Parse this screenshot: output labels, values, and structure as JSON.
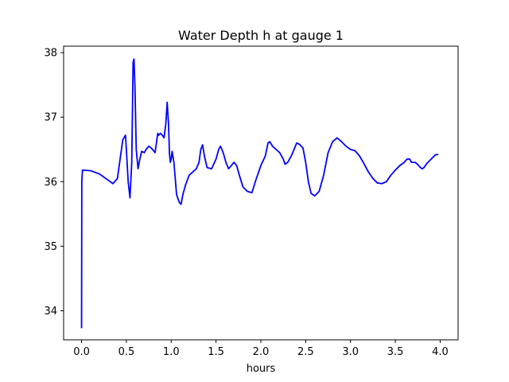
{
  "chart_data": {
    "type": "line",
    "title": "Water Depth h at gauge 1",
    "xlabel": "hours",
    "ylabel": "",
    "xlim": [
      -0.2,
      4.2
    ],
    "ylim": [
      33.55,
      38.1
    ],
    "xticks": [
      0.0,
      0.5,
      1.0,
      1.5,
      2.0,
      2.5,
      3.0,
      3.5,
      4.0
    ],
    "xtick_labels": [
      "0.0",
      "0.5",
      "1.0",
      "1.5",
      "2.0",
      "2.5",
      "3.0",
      "3.5",
      "4.0"
    ],
    "yticks": [
      34,
      35,
      36,
      37,
      38
    ],
    "ytick_labels": [
      "34",
      "35",
      "36",
      "37",
      "38"
    ],
    "grid": false,
    "legend": "none",
    "color": "#0000ff",
    "series": [
      {
        "x": [
          0.0,
          0.003,
          0.01,
          0.1,
          0.2,
          0.3,
          0.35,
          0.4,
          0.43,
          0.46,
          0.49,
          0.5,
          0.52,
          0.54,
          0.56,
          0.575,
          0.585,
          0.595,
          0.61,
          0.63,
          0.65,
          0.67,
          0.7,
          0.72,
          0.75,
          0.78,
          0.82,
          0.85,
          0.86,
          0.88,
          0.9,
          0.92,
          0.94,
          0.955,
          0.97,
          0.98,
          0.99,
          1.0,
          1.01,
          1.03,
          1.06,
          1.09,
          1.11,
          1.13,
          1.16,
          1.2,
          1.24,
          1.28,
          1.31,
          1.33,
          1.35,
          1.37,
          1.4,
          1.45,
          1.5,
          1.53,
          1.55,
          1.58,
          1.61,
          1.64,
          1.67,
          1.7,
          1.73,
          1.76,
          1.8,
          1.85,
          1.9,
          1.95,
          2.0,
          2.05,
          2.08,
          2.1,
          2.13,
          2.17,
          2.21,
          2.25,
          2.27,
          2.3,
          2.34,
          2.37,
          2.4,
          2.43,
          2.47,
          2.5,
          2.53,
          2.56,
          2.6,
          2.65,
          2.7,
          2.75,
          2.8,
          2.85,
          2.9,
          2.95,
          3.0,
          3.05,
          3.1,
          3.15,
          3.2,
          3.25,
          3.3,
          3.35,
          3.4,
          3.45,
          3.5,
          3.55,
          3.6,
          3.63,
          3.66,
          3.68,
          3.7,
          3.72,
          3.74,
          3.76,
          3.78,
          3.8,
          3.82,
          3.85,
          3.9,
          3.95,
          3.98
        ],
        "y": [
          33.73,
          36.0,
          36.18,
          36.17,
          36.12,
          36.02,
          35.97,
          36.05,
          36.35,
          36.65,
          36.72,
          36.5,
          36.0,
          35.75,
          36.3,
          37.85,
          37.9,
          37.5,
          36.5,
          36.2,
          36.35,
          36.47,
          36.45,
          36.5,
          36.55,
          36.52,
          36.45,
          36.75,
          36.72,
          36.75,
          36.72,
          36.68,
          36.9,
          37.23,
          36.9,
          36.45,
          36.3,
          36.35,
          36.47,
          36.3,
          35.8,
          35.68,
          35.65,
          35.8,
          35.95,
          36.1,
          36.15,
          36.2,
          36.3,
          36.5,
          36.57,
          36.4,
          36.22,
          36.2,
          36.35,
          36.5,
          36.55,
          36.45,
          36.3,
          36.2,
          36.25,
          36.3,
          36.25,
          36.1,
          35.92,
          35.85,
          35.83,
          36.05,
          36.25,
          36.4,
          36.6,
          36.62,
          36.55,
          36.5,
          36.45,
          36.35,
          36.27,
          36.3,
          36.4,
          36.5,
          36.6,
          36.58,
          36.52,
          36.3,
          36.0,
          35.82,
          35.78,
          35.85,
          36.1,
          36.45,
          36.62,
          36.68,
          36.62,
          36.55,
          36.5,
          36.48,
          36.4,
          36.28,
          36.15,
          36.05,
          35.98,
          35.97,
          36.0,
          36.1,
          36.18,
          36.25,
          36.3,
          36.35,
          36.35,
          36.3,
          36.3,
          36.3,
          36.28,
          36.25,
          36.22,
          36.2,
          36.22,
          36.28,
          36.35,
          36.42,
          36.42
        ]
      }
    ]
  }
}
